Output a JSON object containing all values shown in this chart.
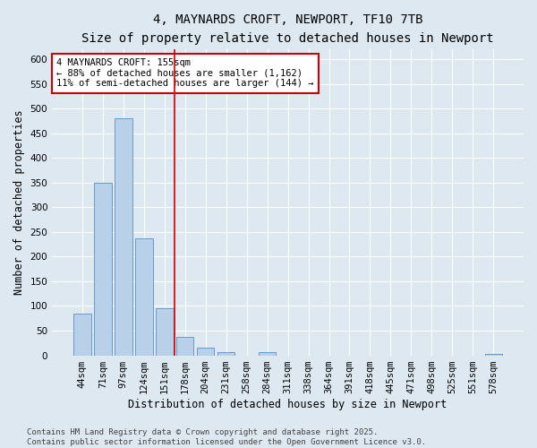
{
  "title_line1": "4, MAYNARDS CROFT, NEWPORT, TF10 7TB",
  "title_line2": "Size of property relative to detached houses in Newport",
  "xlabel": "Distribution of detached houses by size in Newport",
  "ylabel": "Number of detached properties",
  "categories": [
    "44sqm",
    "71sqm",
    "97sqm",
    "124sqm",
    "151sqm",
    "178sqm",
    "204sqm",
    "231sqm",
    "258sqm",
    "284sqm",
    "311sqm",
    "338sqm",
    "364sqm",
    "391sqm",
    "418sqm",
    "445sqm",
    "471sqm",
    "498sqm",
    "525sqm",
    "551sqm",
    "578sqm"
  ],
  "values": [
    85,
    350,
    480,
    237,
    96,
    37,
    15,
    7,
    0,
    7,
    0,
    0,
    0,
    0,
    0,
    0,
    0,
    0,
    0,
    0,
    3
  ],
  "bar_color": "#b8d0e8",
  "bar_edge_color": "#6699cc",
  "vline_x_pos": 4.5,
  "vline_color": "#cc0000",
  "annotation_text": "4 MAYNARDS CROFT: 155sqm\n← 88% of detached houses are smaller (1,162)\n11% of semi-detached houses are larger (144) →",
  "annotation_box_color": "#ffffff",
  "annotation_box_edge": "#cc0000",
  "ylim_max": 620,
  "yticks": [
    0,
    50,
    100,
    150,
    200,
    250,
    300,
    350,
    400,
    450,
    500,
    550,
    600
  ],
  "background_color": "#dde8f0",
  "grid_color": "#ffffff",
  "footer_text": "Contains HM Land Registry data © Crown copyright and database right 2025.\nContains public sector information licensed under the Open Government Licence v3.0.",
  "title_fontsize": 10,
  "subtitle_fontsize": 9,
  "axis_label_fontsize": 8.5,
  "tick_fontsize": 7.5,
  "annotation_fontsize": 7.5,
  "footer_fontsize": 6.5
}
